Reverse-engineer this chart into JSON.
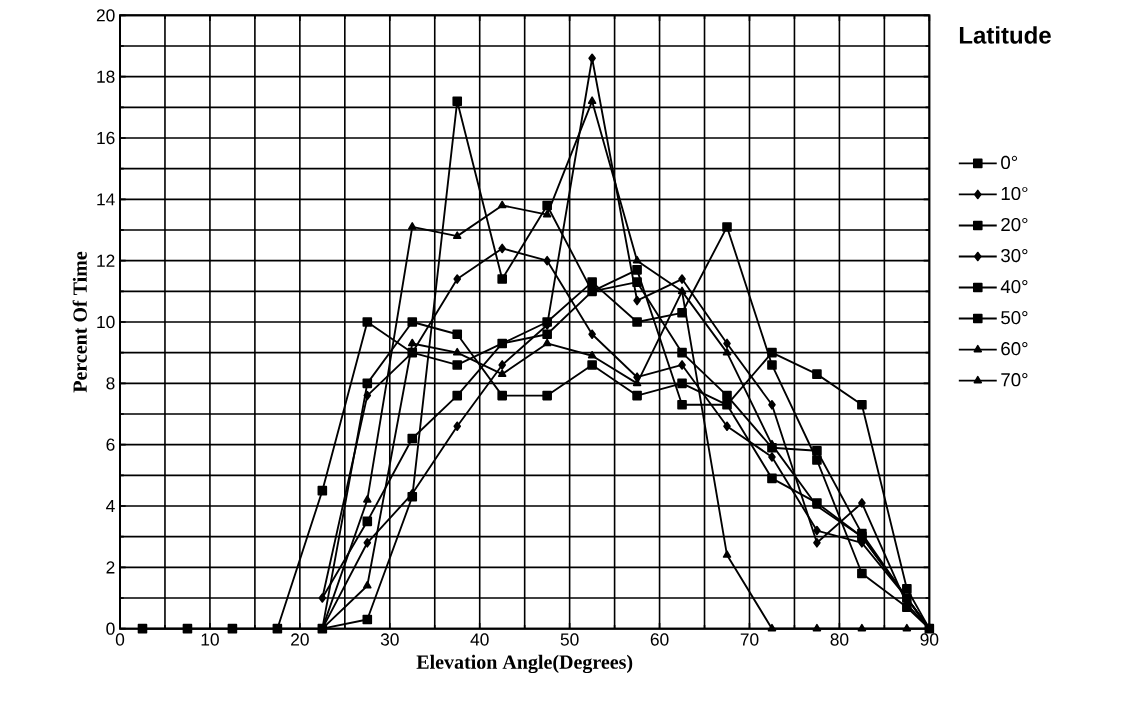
{
  "chart_data": {
    "type": "line",
    "xlabel": "Elevation Angle(Degrees)",
    "ylabel": "Percent Of Time",
    "legend_title": "Latitude",
    "series": [
      {
        "name": "0°",
        "color": "#000000",
        "marker": "square",
        "x": [
          2.5,
          7.5,
          12.5,
          17.5,
          22.5,
          27.5,
          32.5,
          37.5,
          42.5,
          47.5,
          52.5,
          57.5,
          62.5,
          67.5,
          72.5,
          77.5,
          82.5,
          87.5,
          90
        ],
        "values": [
          0,
          0,
          0,
          0,
          4.5,
          10.0,
          9.0,
          8.6,
          9.3,
          9.6,
          11.0,
          11.7,
          7.3,
          7.3,
          4.9,
          4.1,
          3.0,
          1.0,
          0
        ]
      },
      {
        "name": "10°",
        "color": "#000000",
        "marker": "diamond",
        "x": [
          22.5,
          27.5,
          32.5,
          37.5,
          42.5,
          47.5,
          52.5,
          57.5,
          62.5,
          67.5,
          72.5,
          77.5,
          82.5,
          87.5,
          90
        ],
        "values": [
          1.0,
          7.6,
          9.0,
          11.4,
          12.4,
          12.0,
          9.6,
          8.2,
          8.6,
          6.6,
          5.6,
          3.2,
          2.8,
          1.0,
          0
        ]
      },
      {
        "name": "20°",
        "color": "#000000",
        "marker": "square",
        "x": [
          22.5,
          27.5,
          32.5,
          37.5,
          42.5,
          47.5,
          52.5,
          57.5,
          62.5,
          67.5,
          72.5,
          77.5,
          82.5,
          87.5,
          90
        ],
        "values": [
          0,
          0.3,
          4.3,
          17.2,
          11.4,
          13.8,
          11.0,
          11.3,
          9.0,
          7.6,
          5.9,
          5.8,
          3.1,
          1.0,
          0
        ]
      },
      {
        "name": "30°",
        "color": "#000000",
        "marker": "diamond",
        "x": [
          22.5,
          27.5,
          32.5,
          37.5,
          42.5,
          47.5,
          52.5,
          57.5,
          62.5,
          67.5,
          72.5,
          77.5,
          82.5,
          87.5,
          90
        ],
        "values": [
          0,
          2.8,
          4.4,
          6.6,
          8.6,
          9.9,
          18.6,
          10.7,
          11.4,
          9.3,
          7.3,
          2.8,
          4.1,
          0.8,
          0
        ]
      },
      {
        "name": "40°",
        "color": "#000000",
        "marker": "square",
        "x": [
          22.5,
          27.5,
          32.5,
          37.5,
          42.5,
          47.5,
          52.5,
          57.5,
          62.5,
          67.5,
          72.5,
          77.5,
          82.5,
          87.5,
          90
        ],
        "values": [
          1.0,
          3.5,
          6.2,
          7.6,
          9.3,
          10.0,
          11.3,
          10.0,
          10.3,
          13.1,
          8.6,
          5.5,
          1.8,
          0.7,
          0
        ]
      },
      {
        "name": "50°",
        "color": "#000000",
        "marker": "square",
        "x": [
          22.5,
          27.5,
          32.5,
          37.5,
          42.5,
          47.5,
          52.5,
          57.5,
          62.5,
          67.5,
          72.5,
          77.5,
          82.5,
          87.5,
          90
        ],
        "values": [
          0,
          8.0,
          10.0,
          9.6,
          7.6,
          7.6,
          8.6,
          7.6,
          8.0,
          7.3,
          9.0,
          8.3,
          7.3,
          1.3,
          0
        ]
      },
      {
        "name": "60°",
        "color": "#000000",
        "marker": "triangle",
        "x": [
          22.5,
          27.5,
          32.5,
          37.5,
          42.5,
          47.5,
          52.5,
          57.5,
          62.5,
          67.5,
          72.5,
          77.5,
          82.5,
          87.5,
          90
        ],
        "values": [
          0,
          1.4,
          9.3,
          9.0,
          8.3,
          9.3,
          8.9,
          8.0,
          11.0,
          9.0,
          6.0,
          4.0,
          3.0,
          1.0,
          0
        ]
      },
      {
        "name": "70°",
        "color": "#000000",
        "marker": "triangle",
        "x": [
          17.5,
          22.5,
          27.5,
          32.5,
          37.5,
          42.5,
          47.5,
          52.5,
          57.5,
          62.5,
          67.5,
          72.5,
          77.5,
          82.5,
          87.5,
          90
        ],
        "values": [
          0,
          0,
          4.2,
          13.1,
          12.8,
          13.8,
          13.5,
          17.2,
          12.0,
          11.0,
          2.4,
          0,
          0,
          0,
          0,
          0
        ]
      }
    ],
    "xlim": [
      0,
      90
    ],
    "xticks": [
      0,
      10,
      20,
      30,
      40,
      50,
      60,
      70,
      80,
      90
    ],
    "ylim": [
      0,
      20
    ],
    "yticks": [
      0,
      2,
      4,
      6,
      8,
      10,
      12,
      14,
      16,
      18,
      20
    ],
    "grid": true,
    "legend": "right"
  }
}
